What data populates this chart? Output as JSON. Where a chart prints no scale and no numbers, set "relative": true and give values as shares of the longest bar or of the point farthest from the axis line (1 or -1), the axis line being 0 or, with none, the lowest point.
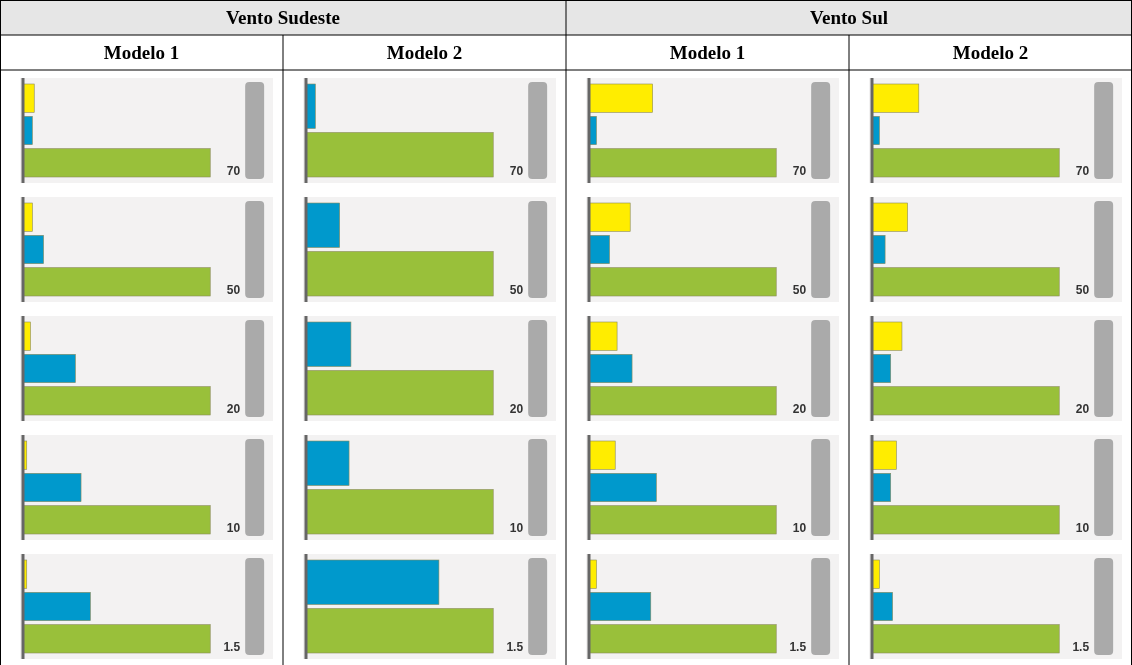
{
  "chart_data": [
    {
      "type": "bar",
      "orientation": "horizontal",
      "relative": true,
      "categories": [
        null,
        null,
        null
      ],
      "values": [
        0.06,
        0.05,
        1
      ],
      "colors": [
        "#ffed00",
        "#0099cc",
        "#99c03a"
      ],
      "annotations": [
        "70"
      ]
    },
    {
      "type": "bar",
      "orientation": "horizontal",
      "relative": true,
      "categories": [
        null,
        null
      ],
      "values": [
        0.05,
        1
      ],
      "colors": [
        "#0099cc",
        "#99c03a"
      ],
      "annotations": [
        "70"
      ]
    },
    {
      "type": "bar",
      "orientation": "horizontal",
      "relative": true,
      "categories": [
        null,
        null,
        null
      ],
      "values": [
        0.34,
        0.04,
        1
      ],
      "colors": [
        "#ffed00",
        "#0099cc",
        "#99c03a"
      ],
      "annotations": [
        "70"
      ]
    },
    {
      "type": "bar",
      "orientation": "horizontal",
      "relative": true,
      "categories": [
        null,
        null,
        null
      ],
      "values": [
        0.25,
        0.04,
        1
      ],
      "colors": [
        "#ffed00",
        "#0099cc",
        "#99c03a"
      ],
      "annotations": [
        "70"
      ]
    },
    {
      "type": "bar",
      "orientation": "horizontal",
      "relative": true,
      "categories": [
        null,
        null,
        null
      ],
      "values": [
        0.05,
        0.11,
        1
      ],
      "colors": [
        "#ffed00",
        "#0099cc",
        "#99c03a"
      ],
      "annotations": [
        "50"
      ]
    },
    {
      "type": "bar",
      "orientation": "horizontal",
      "relative": true,
      "categories": [
        null,
        null
      ],
      "values": [
        0.18,
        1
      ],
      "colors": [
        "#0099cc",
        "#99c03a"
      ],
      "annotations": [
        "50"
      ]
    },
    {
      "type": "bar",
      "orientation": "horizontal",
      "relative": true,
      "categories": [
        null,
        null,
        null
      ],
      "values": [
        0.22,
        0.11,
        1
      ],
      "colors": [
        "#ffed00",
        "#0099cc",
        "#99c03a"
      ],
      "annotations": [
        "50"
      ]
    },
    {
      "type": "bar",
      "orientation": "horizontal",
      "relative": true,
      "categories": [
        null,
        null,
        null
      ],
      "values": [
        0.19,
        0.07,
        1
      ],
      "colors": [
        "#ffed00",
        "#0099cc",
        "#99c03a"
      ],
      "annotations": [
        "50"
      ]
    },
    {
      "type": "bar",
      "orientation": "horizontal",
      "relative": true,
      "categories": [
        null,
        null,
        null
      ],
      "values": [
        0.04,
        0.28,
        1
      ],
      "colors": [
        "#ffed00",
        "#0099cc",
        "#99c03a"
      ],
      "annotations": [
        "20"
      ]
    },
    {
      "type": "bar",
      "orientation": "horizontal",
      "relative": true,
      "categories": [
        null,
        null
      ],
      "values": [
        0.24,
        1
      ],
      "colors": [
        "#0099cc",
        "#99c03a"
      ],
      "annotations": [
        "20"
      ]
    },
    {
      "type": "bar",
      "orientation": "horizontal",
      "relative": true,
      "categories": [
        null,
        null,
        null
      ],
      "values": [
        0.15,
        0.23,
        1
      ],
      "colors": [
        "#ffed00",
        "#0099cc",
        "#99c03a"
      ],
      "annotations": [
        "20"
      ]
    },
    {
      "type": "bar",
      "orientation": "horizontal",
      "relative": true,
      "categories": [
        null,
        null,
        null
      ],
      "values": [
        0.16,
        0.1,
        1
      ],
      "colors": [
        "#ffed00",
        "#0099cc",
        "#99c03a"
      ],
      "annotations": [
        "20"
      ]
    },
    {
      "type": "bar",
      "orientation": "horizontal",
      "relative": true,
      "categories": [
        null,
        null,
        null
      ],
      "values": [
        0.02,
        0.31,
        1
      ],
      "colors": [
        "#ffed00",
        "#0099cc",
        "#99c03a"
      ],
      "annotations": [
        "10"
      ]
    },
    {
      "type": "bar",
      "orientation": "horizontal",
      "relative": true,
      "categories": [
        null,
        null
      ],
      "values": [
        0.23,
        1
      ],
      "colors": [
        "#0099cc",
        "#99c03a"
      ],
      "annotations": [
        "10"
      ]
    },
    {
      "type": "bar",
      "orientation": "horizontal",
      "relative": true,
      "categories": [
        null,
        null,
        null
      ],
      "values": [
        0.14,
        0.36,
        1
      ],
      "colors": [
        "#ffed00",
        "#0099cc",
        "#99c03a"
      ],
      "annotations": [
        "10"
      ]
    },
    {
      "type": "bar",
      "orientation": "horizontal",
      "relative": true,
      "categories": [
        null,
        null,
        null
      ],
      "values": [
        0.13,
        0.1,
        1
      ],
      "colors": [
        "#ffed00",
        "#0099cc",
        "#99c03a"
      ],
      "annotations": [
        "10"
      ]
    },
    {
      "type": "bar",
      "orientation": "horizontal",
      "relative": true,
      "categories": [
        null,
        null,
        null
      ],
      "values": [
        0.02,
        0.36,
        1
      ],
      "colors": [
        "#ffed00",
        "#0099cc",
        "#99c03a"
      ],
      "annotations": [
        "1.5"
      ]
    },
    {
      "type": "bar",
      "orientation": "horizontal",
      "relative": true,
      "categories": [
        null,
        null
      ],
      "values": [
        0.71,
        1
      ],
      "colors": [
        "#0099cc",
        "#99c03a"
      ],
      "annotations": [
        "1.5"
      ]
    },
    {
      "type": "bar",
      "orientation": "horizontal",
      "relative": true,
      "categories": [
        null,
        null,
        null
      ],
      "values": [
        0.04,
        0.33,
        1
      ],
      "colors": [
        "#ffed00",
        "#0099cc",
        "#99c03a"
      ],
      "annotations": [
        "1.5"
      ]
    },
    {
      "type": "bar",
      "orientation": "horizontal",
      "relative": true,
      "categories": [
        null,
        null,
        null
      ],
      "values": [
        0.04,
        0.11,
        1
      ],
      "colors": [
        "#ffed00",
        "#0099cc",
        "#99c03a"
      ],
      "annotations": [
        "1.5"
      ]
    },
    {
      "type": "other",
      "title": "Vento Sudeste"
    },
    {
      "type": "other",
      "title": "Vento Sul"
    },
    {
      "type": "other",
      "title": "Modelo 1"
    },
    {
      "type": "other",
      "title": "Modelo 2"
    },
    {
      "type": "other",
      "title": "Modelo 1"
    },
    {
      "type": "other",
      "title": "Modelo 2"
    }
  ]
}
